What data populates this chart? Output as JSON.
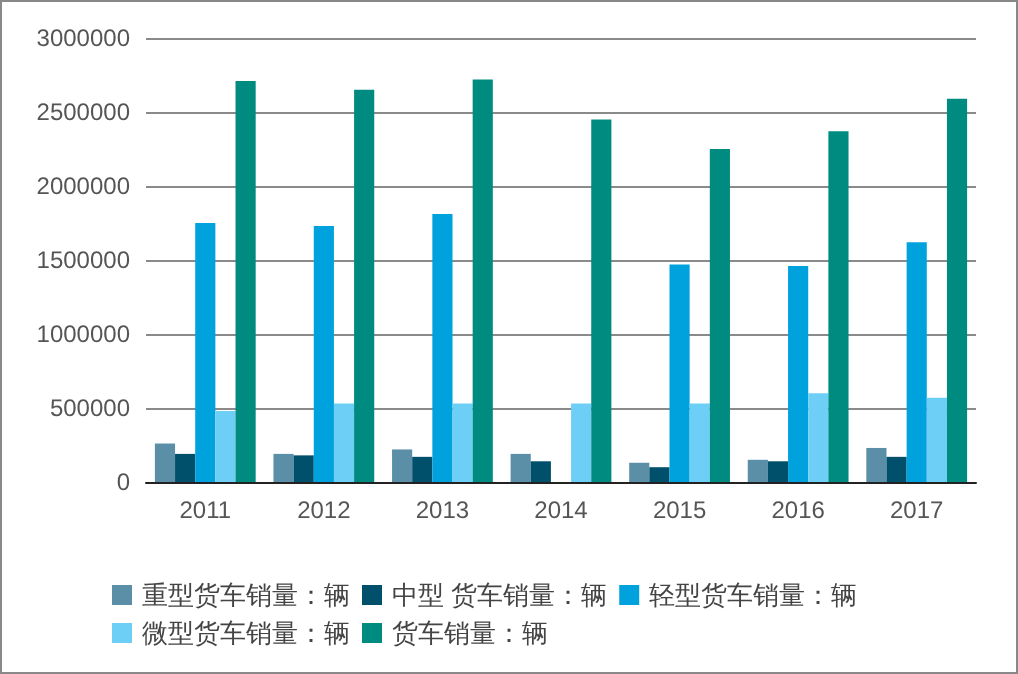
{
  "chart_data": {
    "type": "bar",
    "categories": [
      "2011",
      "2012",
      "2013",
      "2014",
      "2015",
      "2016",
      "2017"
    ],
    "series": [
      {
        "name": "重型货车销量：辆",
        "color": "#5b8fa8",
        "values": [
          260000,
          190000,
          220000,
          190000,
          130000,
          150000,
          230000
        ]
      },
      {
        "name": "中型 货车销量：辆",
        "color": "#004f6b",
        "values": [
          190000,
          180000,
          170000,
          140000,
          100000,
          140000,
          170000
        ]
      },
      {
        "name": "轻型货车销量：辆",
        "color": "#00a2de",
        "values": [
          1750000,
          1730000,
          1810000,
          null,
          1470000,
          1460000,
          1620000
        ]
      },
      {
        "name": "微型货车销量：辆",
        "color": "#6dcff6",
        "values": [
          480000,
          530000,
          530000,
          530000,
          530000,
          600000,
          570000
        ]
      },
      {
        "name": "货车销量：辆",
        "color": "#008b80",
        "values": [
          2710000,
          2650000,
          2720000,
          2450000,
          2250000,
          2370000,
          2590000
        ]
      }
    ],
    "ylim": [
      0,
      3000000
    ],
    "yticks": [
      0,
      500000,
      1000000,
      1500000,
      2000000,
      2500000,
      3000000
    ],
    "grid": "y",
    "legend": "bottom"
  }
}
